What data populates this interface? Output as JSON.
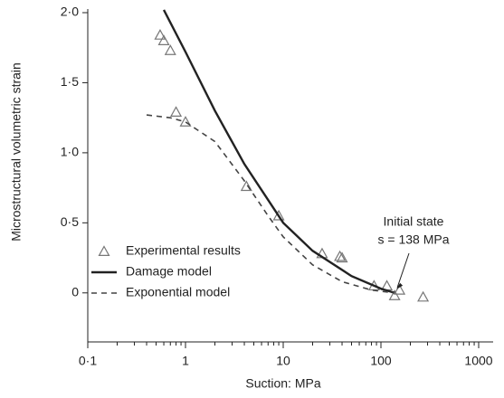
{
  "chart_data": {
    "type": "scatter",
    "xlabel": "Suction: MPa",
    "ylabel": "Microstructural volumetric strain",
    "xscale": "log",
    "xlim": [
      0.1,
      1000
    ],
    "ylim": [
      -0.35,
      2.0
    ],
    "xticks": [
      {
        "value": 0.1,
        "label": "0·1"
      },
      1,
      10,
      100,
      1000
    ],
    "yticks": [
      0,
      {
        "value": 0.5,
        "label": "0·5"
      },
      {
        "value": 1.0,
        "label": "1·0"
      },
      {
        "value": 1.5,
        "label": "1·5"
      },
      {
        "value": 2.0,
        "label": "2·0"
      }
    ],
    "legend": "lower left",
    "annotation": [
      "Initial state",
      "s = 138 MPa"
    ],
    "annotation_x": 138,
    "annotation_y": 0,
    "series": [
      {
        "name": "Experimental results",
        "style": "triangle",
        "color": "#777777",
        "x": [
          0.55,
          0.6,
          0.7,
          0.8,
          1.0,
          4.2,
          9,
          25,
          38,
          40,
          85,
          115,
          138,
          155,
          270
        ],
        "values": [
          1.84,
          1.8,
          1.73,
          1.29,
          1.22,
          0.76,
          0.55,
          0.28,
          0.26,
          0.25,
          0.05,
          0.05,
          -0.02,
          0.02,
          -0.03
        ]
      },
      {
        "name": "Damage model",
        "style": "solid",
        "color": "#222222",
        "x": [
          0.6,
          1,
          2,
          4,
          10,
          20,
          50,
          100,
          138
        ],
        "values": [
          2.02,
          1.72,
          1.3,
          0.92,
          0.5,
          0.3,
          0.12,
          0.03,
          0
        ]
      },
      {
        "name": "Exponential model",
        "style": "dashed",
        "color": "#444444",
        "x": [
          0.4,
          0.7,
          1,
          2,
          4,
          7,
          10,
          20,
          40,
          80,
          138
        ],
        "values": [
          1.27,
          1.25,
          1.22,
          1.08,
          0.8,
          0.55,
          0.4,
          0.2,
          0.08,
          0.02,
          0
        ]
      }
    ]
  }
}
